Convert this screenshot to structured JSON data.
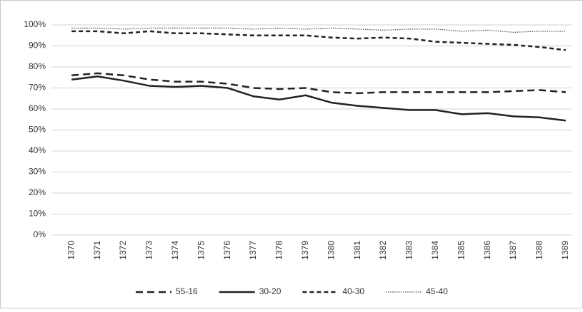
{
  "chart_data": {
    "type": "line",
    "categories": [
      "1370",
      "1371",
      "1372",
      "1373",
      "1374",
      "1375",
      "1376",
      "1377",
      "1378",
      "1379",
      "1380",
      "1381",
      "1382",
      "1383",
      "1384",
      "1385",
      "1386",
      "1387",
      "1388",
      "1389"
    ],
    "series": [
      {
        "name": "55-16",
        "color": "#222222",
        "dash": "10,6",
        "width": 2.5,
        "values": [
          76,
          77,
          76,
          74,
          73,
          73,
          72,
          70,
          69.5,
          70,
          68,
          67.5,
          68,
          68,
          68,
          68,
          68,
          68.5,
          69,
          68
        ]
      },
      {
        "name": "30-20",
        "color": "#222222",
        "dash": "none",
        "width": 2.5,
        "values": [
          74,
          75.5,
          73.5,
          71,
          70.5,
          71,
          70,
          66,
          64.5,
          66.5,
          63,
          61.5,
          60.5,
          59.5,
          59.5,
          57.5,
          58,
          56.5,
          56,
          54.5
        ]
      },
      {
        "name": "40-30",
        "color": "#222222",
        "dash": "6,4",
        "width": 2.5,
        "values": [
          97,
          97,
          96,
          97,
          96,
          96,
          95.5,
          95,
          95,
          95,
          94,
          93.5,
          94,
          93.5,
          92,
          91.5,
          91,
          90.5,
          89.5,
          88
        ]
      },
      {
        "name": "45-40",
        "color": "#555555",
        "dash": "1.5,1.5",
        "width": 1.3,
        "values": [
          98.5,
          98.5,
          98,
          98.5,
          98.5,
          98.5,
          98.5,
          98,
          98.5,
          98,
          98.5,
          98,
          97.5,
          98,
          98,
          97,
          97.5,
          96.5,
          97,
          97
        ]
      }
    ],
    "ylim": [
      0,
      100
    ],
    "yticks": [
      {
        "value": 0,
        "label": "0%"
      },
      {
        "value": 10,
        "label": "10%"
      },
      {
        "value": 20,
        "label": "20%"
      },
      {
        "value": 30,
        "label": "30%"
      },
      {
        "value": 40,
        "label": "40%"
      },
      {
        "value": 50,
        "label": "50%"
      },
      {
        "value": 60,
        "label": "60%"
      },
      {
        "value": 70,
        "label": "70%"
      },
      {
        "value": 80,
        "label": "80%"
      },
      {
        "value": 90,
        "label": "90%"
      },
      {
        "value": 100,
        "label": "100%"
      }
    ],
    "grid": true,
    "legend": "bottom"
  }
}
